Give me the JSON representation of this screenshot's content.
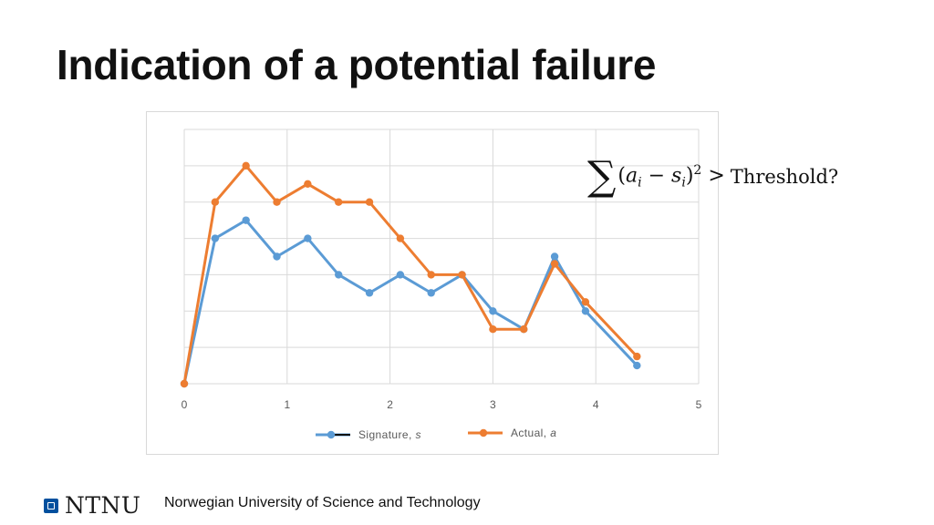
{
  "slide": {
    "title": "Indication of a potential failure"
  },
  "formula": {
    "sigma": "∑",
    "open": "(",
    "a": "a",
    "a_sub": "i",
    "minus": " − ",
    "s": "s",
    "s_sub": "i",
    "close": ")",
    "power": "2",
    "gt": " > ",
    "threshold": "Threshold?"
  },
  "footer": {
    "logo": "NTNU",
    "university": "Norwegian University of Science and Technology"
  },
  "colors": {
    "signature": "#5b9bd5",
    "actual": "#ed7d31",
    "grid": "#d9d9d9",
    "tick": "#595959"
  },
  "chart_data": {
    "type": "line",
    "title": "",
    "xlabel": "",
    "ylabel": "",
    "xlim": [
      0,
      5
    ],
    "ylim": [
      0,
      7
    ],
    "xticks": [
      "0",
      "1",
      "2",
      "3",
      "4",
      "5"
    ],
    "grid": true,
    "legend_position": "bottom",
    "series": [
      {
        "name": "Signature, ",
        "name_italic": "s",
        "key": "signature",
        "x": [
          0,
          0.3,
          0.6,
          0.9,
          1.2,
          1.5,
          1.8,
          2.1,
          2.4,
          2.7,
          3.0,
          3.3,
          3.6,
          3.9,
          4.4
        ],
        "y": [
          0,
          4.0,
          4.5,
          3.5,
          4.0,
          3.0,
          2.5,
          3.0,
          2.5,
          3.0,
          2.0,
          1.5,
          3.5,
          2.0,
          0.5
        ]
      },
      {
        "name": "Actual, ",
        "name_italic": "a",
        "key": "actual",
        "x": [
          0,
          0.3,
          0.6,
          0.9,
          1.2,
          1.5,
          1.8,
          2.1,
          2.4,
          2.7,
          3.0,
          3.3,
          3.6,
          3.9,
          4.4
        ],
        "y": [
          0,
          5.0,
          6.0,
          5.0,
          5.5,
          5.0,
          5.0,
          4.0,
          3.0,
          3.0,
          1.5,
          1.5,
          3.3,
          2.25,
          0.75
        ]
      }
    ]
  }
}
